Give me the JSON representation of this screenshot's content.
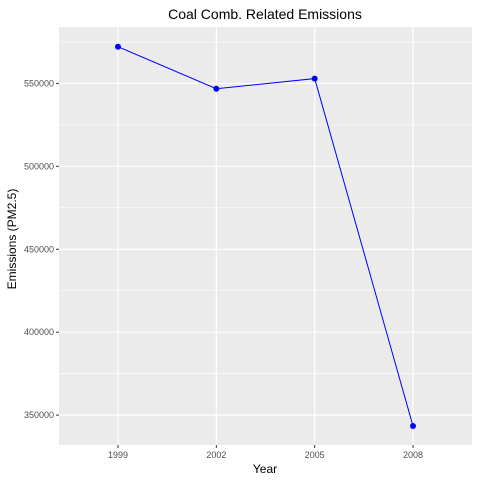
{
  "chart_data": {
    "type": "line",
    "title": "Coal Comb. Related Emissions",
    "xlabel": "Year",
    "ylabel": "Emissions (PM2.5)",
    "x": [
      "1999",
      "2002",
      "2005",
      "2008"
    ],
    "series": [
      {
        "values": [
          572126,
          546789,
          552881,
          343432
        ]
      }
    ],
    "y_ticks": [
      350000,
      400000,
      450000,
      500000,
      550000
    ],
    "y_tick_labels": [
      "350000",
      "400000",
      "450000",
      "500000",
      "550000"
    ],
    "ylim": [
      332000,
      584000
    ],
    "grid": true,
    "colors": {
      "panel": "#ebebeb",
      "grid": "#ffffff",
      "line": "#0000ff",
      "point": "#0000ff"
    }
  }
}
